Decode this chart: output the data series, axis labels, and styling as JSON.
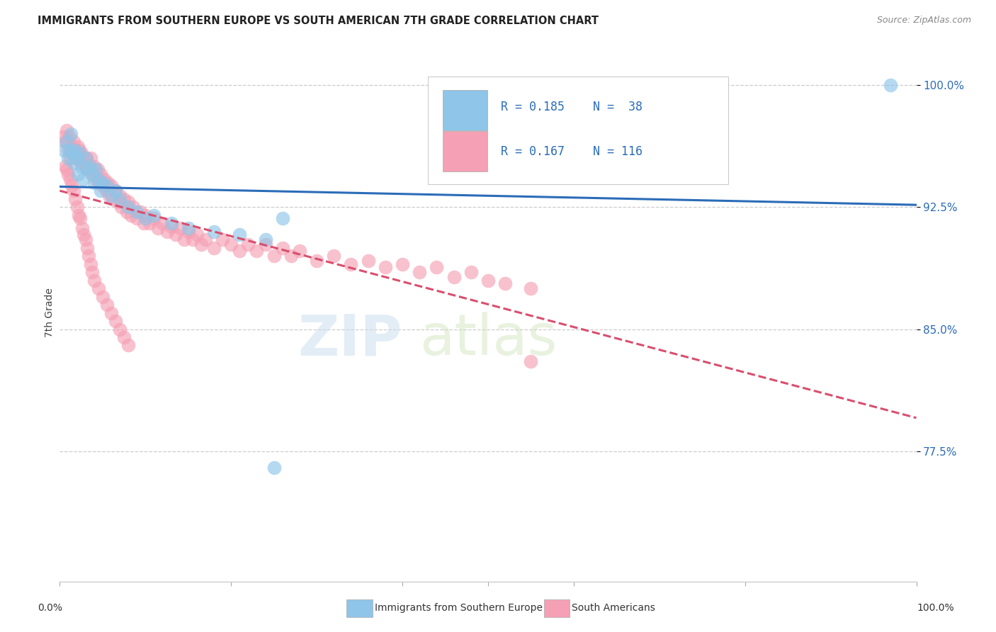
{
  "title": "IMMIGRANTS FROM SOUTHERN EUROPE VS SOUTH AMERICAN 7TH GRADE CORRELATION CHART",
  "source": "Source: ZipAtlas.com",
  "ylabel": "7th Grade",
  "ytick_labels": [
    "100.0%",
    "92.5%",
    "85.0%",
    "77.5%"
  ],
  "ytick_values": [
    1.0,
    0.925,
    0.85,
    0.775
  ],
  "xlim": [
    0.0,
    1.0
  ],
  "ylim": [
    0.695,
    1.025
  ],
  "legend_blue_R": "R = 0.185",
  "legend_blue_N": "N =  38",
  "legend_pink_R": "R = 0.167",
  "legend_pink_N": "N = 116",
  "legend_label_blue": "Immigrants from Southern Europe",
  "legend_label_pink": "South Americans",
  "blue_color": "#8EC5E8",
  "pink_color": "#F5A0B5",
  "line_blue_color": "#2B6CB8",
  "line_pink_color": "#D94F6E",
  "text_blue_color": "#2B6CB8",
  "text_dark_color": "#2A2A3A",
  "blue_scatter_x": [
    0.005,
    0.008,
    0.01,
    0.012,
    0.013,
    0.015,
    0.016,
    0.018,
    0.02,
    0.021,
    0.023,
    0.025,
    0.027,
    0.03,
    0.032,
    0.035,
    0.038,
    0.04,
    0.042,
    0.045,
    0.048,
    0.05,
    0.055,
    0.06,
    0.065,
    0.07,
    0.08,
    0.09,
    0.1,
    0.11,
    0.13,
    0.15,
    0.18,
    0.21,
    0.24,
    0.26,
    0.25,
    0.97
  ],
  "blue_scatter_y": [
    0.96,
    0.965,
    0.955,
    0.96,
    0.97,
    0.958,
    0.952,
    0.96,
    0.955,
    0.945,
    0.958,
    0.95,
    0.942,
    0.955,
    0.948,
    0.95,
    0.945,
    0.94,
    0.948,
    0.942,
    0.935,
    0.94,
    0.938,
    0.932,
    0.935,
    0.93,
    0.925,
    0.922,
    0.918,
    0.92,
    0.915,
    0.912,
    0.91,
    0.908,
    0.905,
    0.918,
    0.765,
    1.0
  ],
  "pink_scatter_x": [
    0.004,
    0.006,
    0.008,
    0.01,
    0.011,
    0.012,
    0.014,
    0.015,
    0.016,
    0.018,
    0.019,
    0.02,
    0.021,
    0.022,
    0.023,
    0.024,
    0.025,
    0.026,
    0.028,
    0.03,
    0.031,
    0.032,
    0.033,
    0.035,
    0.036,
    0.038,
    0.04,
    0.042,
    0.044,
    0.046,
    0.048,
    0.05,
    0.052,
    0.054,
    0.056,
    0.058,
    0.06,
    0.062,
    0.065,
    0.068,
    0.07,
    0.072,
    0.075,
    0.078,
    0.08,
    0.083,
    0.086,
    0.09,
    0.094,
    0.098,
    0.1,
    0.105,
    0.11,
    0.115,
    0.12,
    0.125,
    0.13,
    0.135,
    0.14,
    0.145,
    0.15,
    0.155,
    0.16,
    0.165,
    0.17,
    0.18,
    0.19,
    0.2,
    0.21,
    0.22,
    0.23,
    0.24,
    0.25,
    0.26,
    0.27,
    0.28,
    0.3,
    0.32,
    0.34,
    0.36,
    0.38,
    0.4,
    0.42,
    0.44,
    0.46,
    0.48,
    0.5,
    0.52,
    0.55,
    0.006,
    0.008,
    0.01,
    0.012,
    0.014,
    0.016,
    0.018,
    0.02,
    0.022,
    0.024,
    0.026,
    0.028,
    0.03,
    0.032,
    0.034,
    0.036,
    0.038,
    0.04,
    0.045,
    0.05,
    0.055,
    0.06,
    0.065,
    0.07,
    0.075,
    0.08,
    0.55
  ],
  "pink_scatter_y": [
    0.968,
    0.965,
    0.972,
    0.96,
    0.968,
    0.955,
    0.962,
    0.958,
    0.965,
    0.955,
    0.96,
    0.958,
    0.962,
    0.955,
    0.96,
    0.953,
    0.958,
    0.952,
    0.955,
    0.95,
    0.955,
    0.948,
    0.952,
    0.948,
    0.955,
    0.945,
    0.95,
    0.942,
    0.948,
    0.94,
    0.945,
    0.938,
    0.942,
    0.935,
    0.94,
    0.932,
    0.938,
    0.93,
    0.935,
    0.928,
    0.932,
    0.925,
    0.93,
    0.922,
    0.928,
    0.92,
    0.925,
    0.918,
    0.922,
    0.915,
    0.92,
    0.915,
    0.918,
    0.912,
    0.915,
    0.91,
    0.913,
    0.908,
    0.912,
    0.905,
    0.91,
    0.905,
    0.908,
    0.902,
    0.905,
    0.9,
    0.905,
    0.902,
    0.898,
    0.902,
    0.898,
    0.902,
    0.895,
    0.9,
    0.895,
    0.898,
    0.892,
    0.895,
    0.89,
    0.892,
    0.888,
    0.89,
    0.885,
    0.888,
    0.882,
    0.885,
    0.88,
    0.878,
    0.875,
    0.95,
    0.948,
    0.945,
    0.942,
    0.938,
    0.935,
    0.93,
    0.925,
    0.92,
    0.918,
    0.912,
    0.908,
    0.905,
    0.9,
    0.895,
    0.89,
    0.885,
    0.88,
    0.875,
    0.87,
    0.865,
    0.86,
    0.855,
    0.85,
    0.845,
    0.84,
    0.83
  ]
}
